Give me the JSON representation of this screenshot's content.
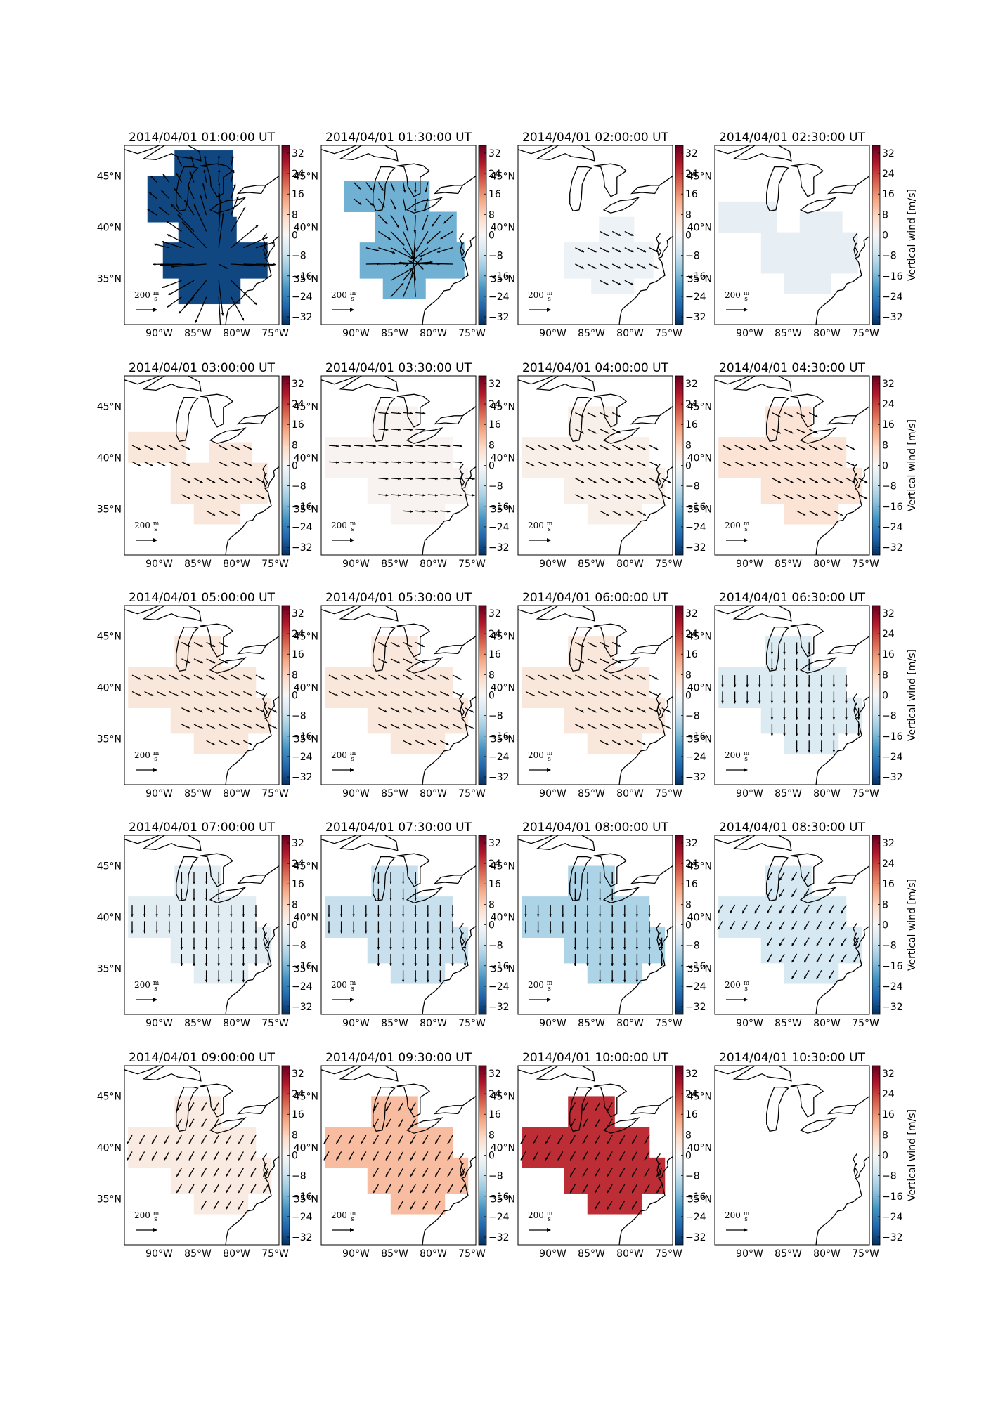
{
  "figure": {
    "panels": [
      {
        "title": "2014/04/01 01:00:00 UT",
        "value": -32,
        "wind": "strong"
      },
      {
        "title": "2014/04/01 01:30:00 UT",
        "value": -17,
        "wind": "strong2"
      },
      {
        "title": "2014/04/01 02:00:00 UT",
        "value": -2,
        "wind": "se"
      },
      {
        "title": "2014/04/01 02:30:00 UT",
        "value": -3,
        "wind": "none"
      },
      {
        "title": "2014/04/01 03:00:00 UT",
        "value": 4,
        "wind": "se"
      },
      {
        "title": "2014/04/01 03:30:00 UT",
        "value": 1,
        "wind": "e"
      },
      {
        "title": "2014/04/01 04:00:00 UT",
        "value": 2,
        "wind": "se"
      },
      {
        "title": "2014/04/01 04:30:00 UT",
        "value": 5,
        "wind": "se"
      },
      {
        "title": "2014/04/01 05:00:00 UT",
        "value": 4,
        "wind": "se"
      },
      {
        "title": "2014/04/01 05:30:00 UT",
        "value": 4,
        "wind": "se"
      },
      {
        "title": "2014/04/01 06:00:00 UT",
        "value": 4,
        "wind": "se"
      },
      {
        "title": "2014/04/01 06:30:00 UT",
        "value": -5,
        "wind": "s"
      },
      {
        "title": "2014/04/01 07:00:00 UT",
        "value": -4,
        "wind": "s"
      },
      {
        "title": "2014/04/01 07:30:00 UT",
        "value": -8,
        "wind": "s"
      },
      {
        "title": "2014/04/01 08:00:00 UT",
        "value": -11,
        "wind": "s"
      },
      {
        "title": "2014/04/01 08:30:00 UT",
        "value": -6,
        "wind": "sw"
      },
      {
        "title": "2014/04/01 09:00:00 UT",
        "value": 3,
        "wind": "sw"
      },
      {
        "title": "2014/04/01 09:30:00 UT",
        "value": 11,
        "wind": "sw"
      },
      {
        "title": "2014/04/01 10:00:00 UT",
        "value": 26,
        "wind": "sw"
      },
      {
        "title": "2014/04/01 10:30:00 UT",
        "value": null,
        "wind": "none"
      }
    ],
    "lat_ticks": [
      "45°N",
      "40°N",
      "35°N"
    ],
    "lon_ticks": [
      "90°W",
      "85°W",
      "80°W",
      "75°W"
    ],
    "colorbar_ticks": [
      "32",
      "24",
      "16",
      "8",
      "0",
      "−8",
      "−16",
      "−24",
      "−32"
    ],
    "colorbar_label": "Vertical wind [m/s]",
    "reference_arrow": {
      "value": "200",
      "unit_num": "m",
      "unit_den": "s"
    },
    "colormap": [
      "#053061",
      "#2166ac",
      "#4393c3",
      "#92c5de",
      "#d1e5f0",
      "#f7f7f7",
      "#fddbc7",
      "#f4a582",
      "#d6604d",
      "#b2182b",
      "#67001f"
    ],
    "map_colors": {
      "coast": "#000000",
      "frame": "#000000"
    }
  }
}
